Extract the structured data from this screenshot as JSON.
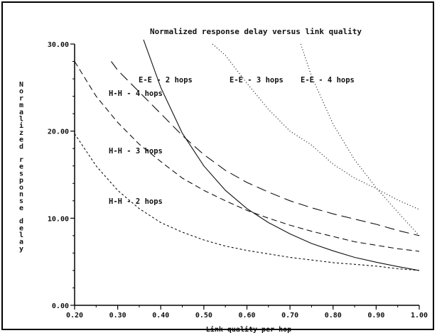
{
  "chart_data": {
    "type": "line",
    "title": "Normalized response delay versus link quality",
    "xlabel": "Link quality per hop",
    "ylabel": "Normalized response delay",
    "xlim": [
      0.2,
      1.0
    ],
    "ylim": [
      0,
      30
    ],
    "x_ticks": [
      "0.20",
      "0.30",
      "0.40",
      "0.50",
      "0.60",
      "0.70",
      "0.80",
      "0.90",
      "1.00"
    ],
    "y_ticks": [
      "0.00",
      "10.00",
      "20.00",
      "30.00"
    ],
    "grid": false,
    "series": [
      {
        "name": "E-E - 2 hops",
        "style": "solid",
        "x": [
          0.36,
          0.4,
          0.45,
          0.5,
          0.55,
          0.6,
          0.65,
          0.7,
          0.75,
          0.8,
          0.85,
          0.9,
          0.95,
          1.0
        ],
        "y": [
          30.5,
          25.0,
          19.75,
          16.0,
          13.2,
          11.1,
          9.5,
          8.2,
          7.1,
          6.25,
          5.5,
          4.95,
          4.45,
          4.0
        ]
      },
      {
        "name": "E-E - 3 hops",
        "style": "dotted",
        "x": [
          0.725,
          0.75,
          0.8,
          0.85,
          0.9,
          0.95,
          1.0
        ],
        "y": [
          30.0,
          26.3,
          20.8,
          16.7,
          13.5,
          10.7,
          8.0
        ]
      },
      {
        "name": "E-E - 4 hops",
        "style": "dotted",
        "x": [
          0.52,
          0.55,
          0.6,
          0.65,
          0.7,
          0.75,
          0.8,
          0.85,
          0.9,
          0.95,
          1.0
        ],
        "y": [
          30.0,
          28.7,
          25.5,
          22.5,
          20.0,
          18.4,
          16.2,
          14.6,
          13.4,
          12.1,
          11.0
        ]
      },
      {
        "name": "H-H - 4 hops",
        "style": "long-dash",
        "x": [
          0.285,
          0.3,
          0.35,
          0.4,
          0.45,
          0.5,
          0.55,
          0.6,
          0.65,
          0.7,
          0.75,
          0.8,
          0.85,
          0.9,
          0.95,
          1.0
        ],
        "y": [
          28.0,
          27.0,
          24.5,
          22.0,
          19.5,
          17.3,
          15.5,
          14.1,
          13.0,
          12.0,
          11.2,
          10.5,
          9.9,
          9.3,
          8.6,
          8.0
        ]
      },
      {
        "name": "H-H - 3 hops",
        "style": "dash",
        "x": [
          0.2,
          0.25,
          0.3,
          0.35,
          0.4,
          0.45,
          0.5,
          0.55,
          0.6,
          0.65,
          0.7,
          0.75,
          0.8,
          0.85,
          0.9,
          0.95,
          1.0
        ],
        "y": [
          28.0,
          24.0,
          21.0,
          18.5,
          16.5,
          14.6,
          13.2,
          12.0,
          10.9,
          10.0,
          9.2,
          8.5,
          7.9,
          7.3,
          6.9,
          6.5,
          6.2
        ]
      },
      {
        "name": "H-H - 2 hops",
        "style": "short-dash",
        "x": [
          0.2,
          0.25,
          0.3,
          0.35,
          0.4,
          0.45,
          0.5,
          0.55,
          0.6,
          0.65,
          0.7,
          0.75,
          0.8,
          0.85,
          0.9,
          0.95,
          1.0
        ],
        "y": [
          19.7,
          16.0,
          13.2,
          11.1,
          9.5,
          8.4,
          7.5,
          6.8,
          6.3,
          5.9,
          5.5,
          5.2,
          4.9,
          4.7,
          4.5,
          4.2,
          4.0
        ]
      }
    ]
  }
}
